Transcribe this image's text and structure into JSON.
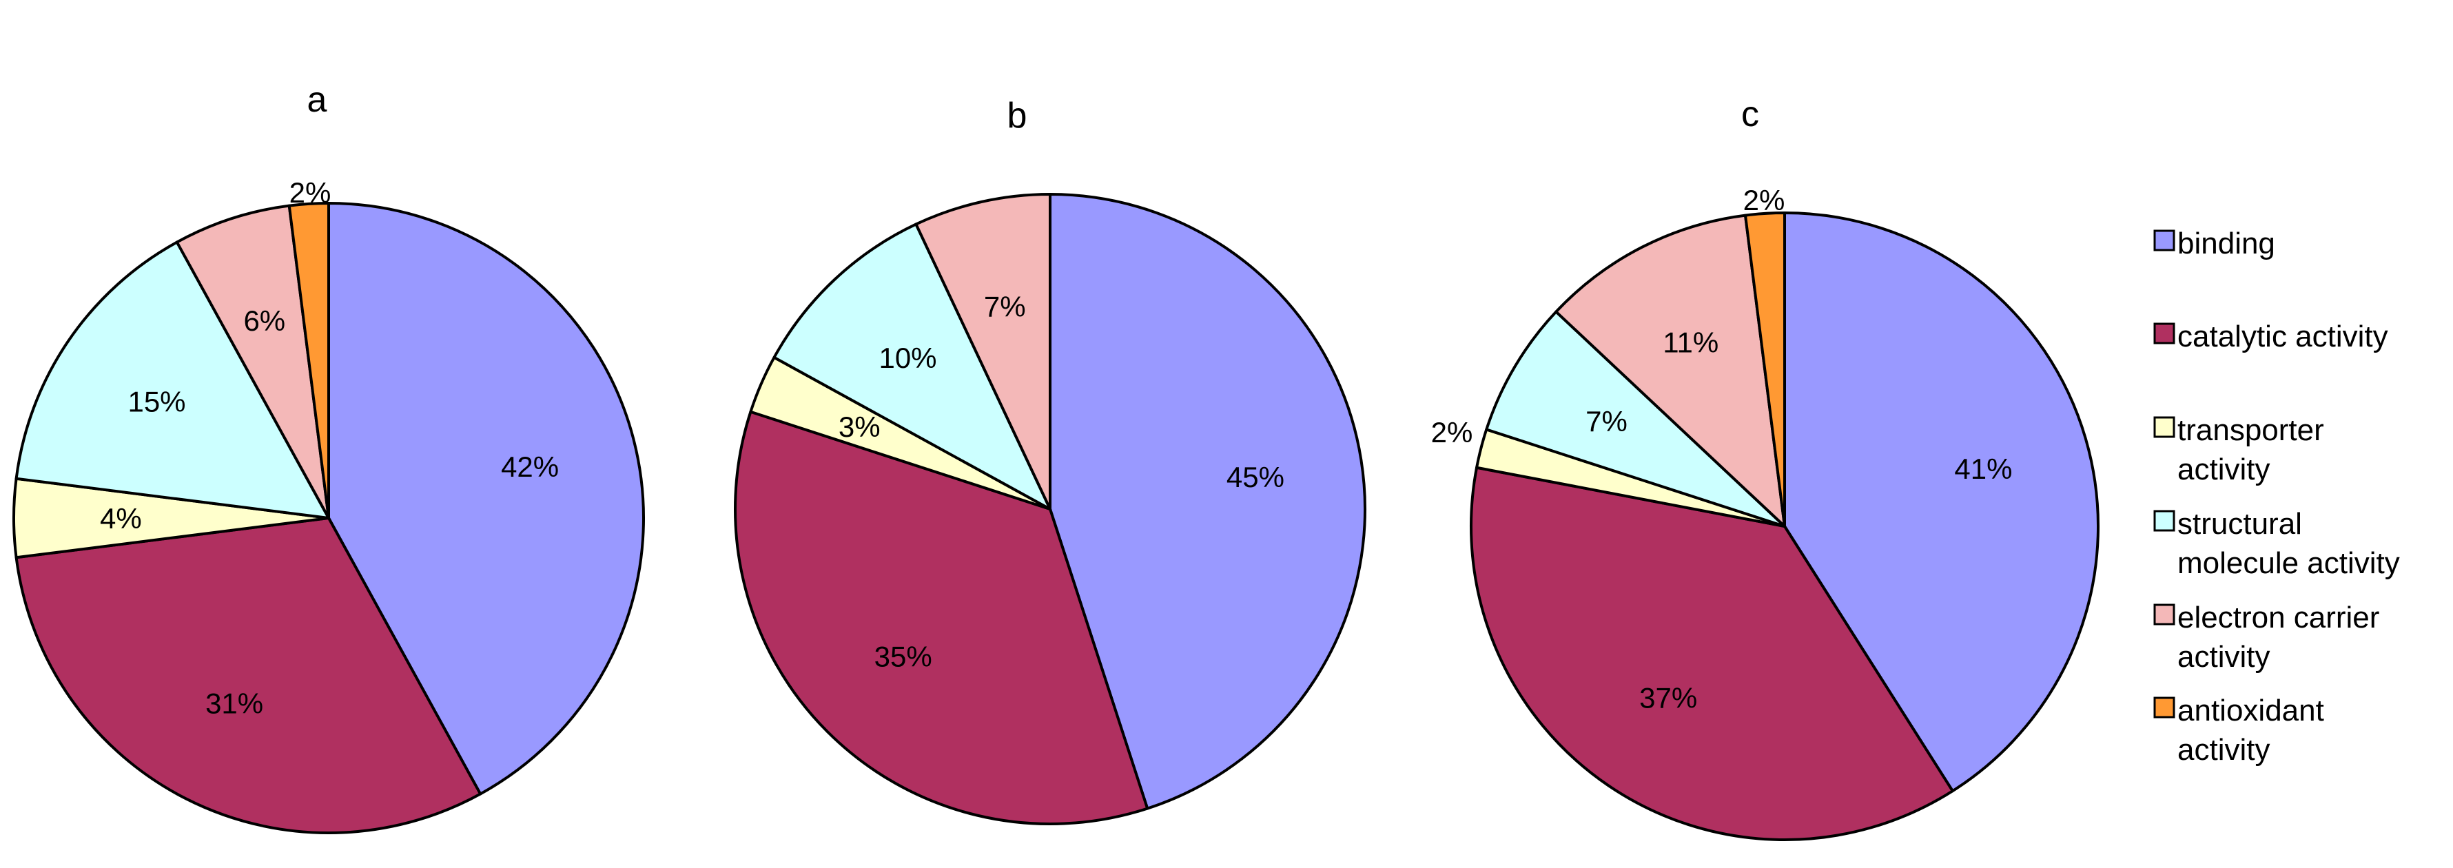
{
  "chart_data": [
    {
      "type": "pie",
      "title": "a",
      "categories": [
        "binding",
        "catalytic activity",
        "transporter activity",
        "structural molecule activity",
        "electron carrier activity",
        "antioxidant activity"
      ],
      "values": [
        42,
        31,
        4,
        15,
        6,
        2
      ],
      "value_labels": [
        "42%",
        "31%",
        "4%",
        "15%",
        "6%",
        "2%"
      ]
    },
    {
      "type": "pie",
      "title": "b",
      "categories": [
        "binding",
        "catalytic activity",
        "transporter activity",
        "structural molecule activity",
        "electron carrier activity"
      ],
      "values": [
        45,
        35,
        3,
        10,
        7
      ],
      "value_labels": [
        "45%",
        "35%",
        "3%",
        "10%",
        "7%"
      ]
    },
    {
      "type": "pie",
      "title": "c",
      "categories": [
        "binding",
        "catalytic activity",
        "transporter activity",
        "structural molecule activity",
        "electron carrier activity",
        "antioxidant activity"
      ],
      "values": [
        41,
        37,
        2,
        7,
        11,
        2
      ],
      "value_labels": [
        "41%",
        "37%",
        "2%",
        "7%",
        "11%",
        "2%"
      ]
    }
  ],
  "legend": {
    "position": "right",
    "items": [
      {
        "label_lines": [
          "binding"
        ],
        "color": "#9999ff"
      },
      {
        "label_lines": [
          "catalytic activity"
        ],
        "color": "#b03060"
      },
      {
        "label_lines": [
          "transporter",
          "activity"
        ],
        "color": "#ffffcc"
      },
      {
        "label_lines": [
          "structural",
          "molecule activity"
        ],
        "color": "#ccffff"
      },
      {
        "label_lines": [
          "electron carrier",
          "activity"
        ],
        "color": "#f4b8b8"
      },
      {
        "label_lines": [
          "antioxidant",
          "activity"
        ],
        "color": "#ff9933"
      }
    ]
  },
  "category_colors": {
    "binding": "#9999ff",
    "catalytic activity": "#b03060",
    "transporter activity": "#ffffcc",
    "structural molecule activity": "#ccffff",
    "electron carrier activity": "#f4b8b8",
    "antioxidant activity": "#ff9933"
  }
}
